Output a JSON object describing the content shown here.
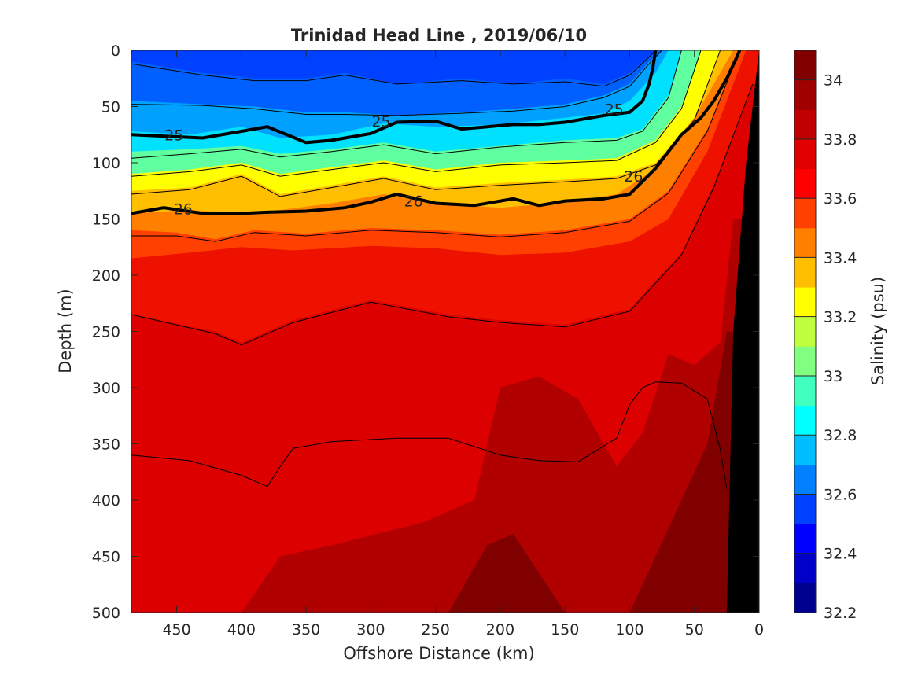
{
  "chart_data": {
    "type": "heatmap",
    "title": "Trinidad Head Line , 2019/06/10",
    "xlabel": "Offshore Distance (km)",
    "ylabel": "Depth (m)",
    "colorbar_label": "Salinity (psu)",
    "xlim": [
      485,
      0
    ],
    "ylim": [
      500,
      0
    ],
    "x_ticks": [
      450,
      400,
      350,
      300,
      250,
      200,
      150,
      100,
      50,
      0
    ],
    "y_ticks": [
      0,
      50,
      100,
      150,
      200,
      250,
      300,
      350,
      400,
      450,
      500
    ],
    "clim": [
      32.2,
      34.1
    ],
    "colorbar_ticks": [
      32.2,
      32.4,
      32.6,
      32.8,
      33,
      33.2,
      33.4,
      33.6,
      33.8,
      34
    ],
    "colorbar_levels": [
      32.2,
      32.3,
      32.4,
      32.5,
      32.6,
      32.7,
      32.8,
      32.9,
      33.0,
      33.1,
      33.2,
      33.3,
      33.4,
      33.5,
      33.6,
      33.7,
      33.8,
      33.9,
      34.0,
      34.1
    ],
    "colorbar_colors": [
      "#00008f",
      "#0000c8",
      "#0000ff",
      "#0040ff",
      "#0080ff",
      "#00bfff",
      "#00ffff",
      "#40ffbf",
      "#80ff80",
      "#bfff40",
      "#ffff00",
      "#ffbf00",
      "#ff8000",
      "#ff4000",
      "#ff0000",
      "#e00000",
      "#c00000",
      "#a00000",
      "#800000"
    ],
    "band_colors": [
      "#0030ff",
      "#0060ff",
      "#00a0ff",
      "#00e0ff",
      "#60ffa0",
      "#ffff00",
      "#ffbf00",
      "#ff8000",
      "#ff4000",
      "#ee1100",
      "#dd0000",
      "#b00000",
      "#800000"
    ],
    "boundaries": [
      {
        "x": [
          485,
          430,
          390,
          350,
          320,
          280,
          230,
          190,
          150,
          120,
          100,
          85,
          80
        ],
        "depth": [
          10,
          20,
          25,
          25,
          20,
          30,
          25,
          30,
          25,
          30,
          20,
          5,
          0
        ]
      },
      {
        "x": [
          485,
          430,
          390,
          350,
          320,
          280,
          230,
          190,
          150,
          120,
          100,
          85,
          75
        ],
        "depth": [
          45,
          48,
          50,
          55,
          55,
          58,
          55,
          52,
          48,
          40,
          30,
          10,
          0
        ]
      },
      {
        "x": [
          485,
          440,
          400,
          370,
          330,
          290,
          250,
          200,
          150,
          120,
          100,
          80,
          70
        ],
        "depth": [
          72,
          75,
          68,
          78,
          75,
          65,
          68,
          66,
          60,
          56,
          45,
          20,
          0
        ]
      },
      {
        "x": [
          485,
          440,
          400,
          370,
          330,
          290,
          250,
          200,
          150,
          110,
          90,
          70,
          60
        ],
        "depth": [
          90,
          88,
          85,
          92,
          88,
          82,
          90,
          85,
          80,
          78,
          70,
          40,
          0
        ]
      },
      {
        "x": [
          485,
          440,
          400,
          370,
          330,
          290,
          250,
          200,
          150,
          110,
          80,
          60,
          45
        ],
        "depth": [
          110,
          106,
          100,
          110,
          104,
          98,
          106,
          100,
          98,
          96,
          80,
          50,
          0
        ]
      },
      {
        "x": [
          485,
          440,
          400,
          370,
          330,
          290,
          250,
          200,
          150,
          110,
          80,
          50,
          30
        ],
        "depth": [
          125,
          122,
          110,
          128,
          120,
          112,
          122,
          118,
          115,
          112,
          100,
          60,
          0
        ]
      },
      {
        "x": [
          485,
          440,
          400,
          370,
          330,
          290,
          250,
          200,
          150,
          110,
          80,
          50,
          20
        ],
        "depth": [
          145,
          142,
          145,
          142,
          136,
          128,
          136,
          140,
          135,
          128,
          105,
          60,
          0
        ]
      },
      {
        "x": [
          485,
          450,
          420,
          390,
          350,
          300,
          250,
          200,
          150,
          100,
          70,
          40,
          15
        ],
        "depth": [
          160,
          162,
          168,
          160,
          163,
          158,
          160,
          164,
          160,
          150,
          125,
          70,
          0
        ]
      },
      {
        "x": [
          485,
          440,
          400,
          360,
          300,
          250,
          200,
          150,
          100,
          70,
          40,
          10
        ],
        "depth": [
          185,
          180,
          175,
          178,
          174,
          176,
          182,
          180,
          170,
          150,
          90,
          0
        ]
      },
      {
        "x": [
          485,
          420,
          400,
          360,
          300,
          240,
          200,
          150,
          100,
          60,
          35,
          5
        ],
        "depth": [
          235,
          250,
          260,
          240,
          222,
          235,
          240,
          244,
          230,
          180,
          120,
          30
        ]
      },
      {
        "x": [
          485,
          440,
          400,
          370,
          330,
          260,
          220,
          200,
          170,
          140,
          110,
          90,
          70,
          50,
          30,
          20
        ],
        "depth": [
          500,
          500,
          500,
          450,
          440,
          420,
          400,
          300,
          290,
          310,
          370,
          340,
          270,
          280,
          260,
          150
        ]
      },
      {
        "x": [
          485,
          440,
          400,
          360,
          320,
          280,
          240,
          210,
          190,
          150,
          120,
          100,
          80,
          60,
          40,
          25
        ],
        "depth": [
          500,
          500,
          500,
          500,
          500,
          500,
          500,
          440,
          430,
          500,
          500,
          500,
          450,
          400,
          350,
          250
        ]
      }
    ],
    "contours": [
      {
        "x": [
          485,
          430,
          400,
          380,
          350,
          330,
          300,
          280,
          250,
          230,
          210,
          190,
          170,
          150,
          120,
          100,
          90,
          85,
          82,
          80
        ],
        "depth": [
          75,
          78,
          72,
          68,
          82,
          80,
          74,
          64,
          63,
          70,
          68,
          66,
          66,
          64,
          58,
          55,
          45,
          30,
          15,
          0
        ]
      },
      {
        "x": [
          485,
          460,
          430,
          400,
          380,
          350,
          320,
          300,
          280,
          250,
          220,
          190,
          170,
          150,
          120,
          100,
          80,
          60,
          45,
          35,
          25,
          18,
          15
        ],
        "depth": [
          145,
          140,
          145,
          145,
          144,
          143,
          140,
          135,
          128,
          136,
          138,
          132,
          138,
          134,
          132,
          128,
          105,
          75,
          60,
          45,
          25,
          8,
          0
        ]
      }
    ],
    "contour_labels": [
      {
        "text": "25",
        "x": 452,
        "depth": 75
      },
      {
        "text": "25",
        "x": 292,
        "depth": 63
      },
      {
        "text": "25",
        "x": 112,
        "depth": 52
      },
      {
        "text": "26",
        "x": 445,
        "depth": 141
      },
      {
        "text": "26",
        "x": 267,
        "depth": 134
      },
      {
        "text": "26",
        "x": 97,
        "depth": 112
      }
    ],
    "thin_contours": [
      {
        "x": [
          485,
          430,
          390,
          350,
          320,
          280,
          230,
          190,
          150,
          120,
          100,
          85,
          80
        ],
        "depth": [
          12,
          22,
          27,
          27,
          22,
          30,
          27,
          30,
          28,
          32,
          22,
          6,
          0
        ]
      },
      {
        "x": [
          485,
          430,
          390,
          350,
          320,
          280,
          230,
          190,
          150,
          120,
          100,
          85,
          75
        ],
        "depth": [
          48,
          49,
          52,
          57,
          57,
          58,
          56,
          54,
          50,
          42,
          32,
          12,
          0
        ]
      },
      {
        "x": [
          485,
          440,
          400,
          370,
          330,
          290,
          250,
          200,
          150,
          110,
          90,
          70,
          60
        ],
        "depth": [
          96,
          92,
          88,
          95,
          90,
          84,
          92,
          86,
          82,
          80,
          72,
          42,
          0
        ]
      },
      {
        "x": [
          485,
          440,
          400,
          370,
          330,
          290,
          250,
          200,
          150,
          110,
          80,
          60,
          45
        ],
        "depth": [
          112,
          108,
          102,
          112,
          106,
          100,
          108,
          102,
          100,
          98,
          82,
          52,
          0
        ]
      },
      {
        "x": [
          485,
          440,
          400,
          370,
          330,
          290,
          250,
          200,
          150,
          110,
          80,
          50,
          30
        ],
        "depth": [
          128,
          124,
          112,
          130,
          122,
          114,
          124,
          120,
          117,
          114,
          102,
          62,
          0
        ]
      },
      {
        "x": [
          485,
          450,
          420,
          390,
          350,
          300,
          250,
          200,
          150,
          100,
          70,
          40,
          15
        ],
        "depth": [
          165,
          165,
          170,
          162,
          165,
          160,
          162,
          166,
          162,
          152,
          127,
          72,
          0
        ]
      },
      {
        "x": [
          485,
          420,
          400,
          360,
          300,
          240,
          200,
          150,
          100,
          60,
          35,
          5
        ],
        "depth": [
          235,
          252,
          262,
          242,
          224,
          237,
          242,
          246,
          232,
          182,
          122,
          30
        ]
      },
      {
        "x": [
          485,
          440,
          400,
          380,
          370,
          360,
          330,
          280,
          240,
          200,
          170,
          140,
          110,
          100,
          90,
          80,
          60,
          40,
          30,
          25
        ],
        "depth": [
          360,
          365,
          378,
          388,
          370,
          354,
          348,
          345,
          345,
          360,
          365,
          366,
          345,
          315,
          300,
          295,
          296,
          310,
          355,
          390
        ]
      }
    ],
    "seafloor": {
      "x": [
        0,
        0,
        25,
        20,
        10
      ],
      "depth": [
        0,
        500,
        500,
        250,
        100
      ]
    }
  }
}
